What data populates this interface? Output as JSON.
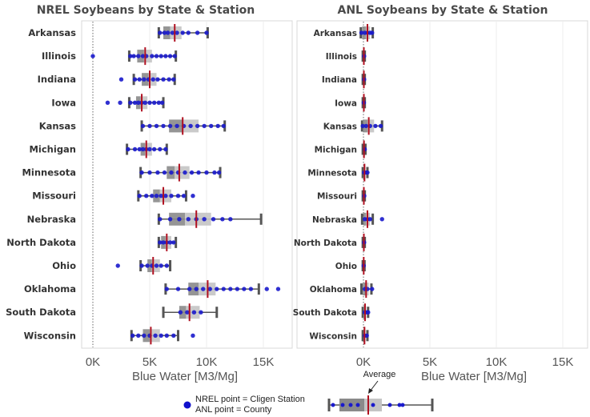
{
  "chart_data": [
    {
      "type": "boxplot",
      "title": "NREL Soybeans by State & Station",
      "xlabel": "Blue Water [M3/Mg]",
      "xlim": [
        -800,
        17000
      ],
      "xticks": [
        0,
        5000,
        10000,
        15000
      ],
      "xtick_labels": [
        "0K",
        "5K",
        "10K",
        "15K"
      ],
      "reference_line_x": 0,
      "categories": [
        "Arkansas",
        "Illinois",
        "Indiana",
        "Iowa",
        "Kansas",
        "Michigan",
        "Minnesota",
        "Missouri",
        "Nebraska",
        "North Dakota",
        "Ohio",
        "Oklahoma",
        "South Dakota",
        "Wisconsin"
      ],
      "boxes": [
        {
          "state": "Arkansas",
          "min": 5800,
          "q1": 6200,
          "median": 6800,
          "q3": 7800,
          "max": 10100,
          "avg": 7200
        },
        {
          "state": "Illinois",
          "min": 3200,
          "q1": 3900,
          "median": 4500,
          "q3": 5200,
          "max": 7300,
          "avg": 4600
        },
        {
          "state": "Indiana",
          "min": 3600,
          "q1": 4300,
          "median": 4900,
          "q3": 5600,
          "max": 7200,
          "avg": 5000
        },
        {
          "state": "Iowa",
          "min": 3200,
          "q1": 3800,
          "median": 4200,
          "q3": 4800,
          "max": 6200,
          "avg": 4300
        },
        {
          "state": "Kansas",
          "min": 4300,
          "q1": 6700,
          "median": 7900,
          "q3": 9300,
          "max": 11600,
          "avg": 7900
        },
        {
          "state": "Michigan",
          "min": 3000,
          "q1": 4200,
          "median": 4600,
          "q3": 5200,
          "max": 6500,
          "avg": 4700
        },
        {
          "state": "Minnesota",
          "min": 4200,
          "q1": 6500,
          "median": 7200,
          "q3": 8500,
          "max": 11200,
          "avg": 7600
        },
        {
          "state": "Missouri",
          "min": 4000,
          "q1": 5300,
          "median": 5900,
          "q3": 6900,
          "max": 8200,
          "avg": 6200
        },
        {
          "state": "Nebraska",
          "min": 5800,
          "q1": 6700,
          "median": 8100,
          "q3": 10400,
          "max": 14800,
          "avg": 9100
        },
        {
          "state": "North Dakota",
          "min": 5800,
          "q1": 6000,
          "median": 6400,
          "q3": 6900,
          "max": 7300,
          "avg": 6500
        },
        {
          "state": "Ohio",
          "min": 4200,
          "q1": 4800,
          "median": 5200,
          "q3": 5900,
          "max": 6800,
          "avg": 5300
        },
        {
          "state": "Oklahoma",
          "min": 6400,
          "q1": 8400,
          "median": 9300,
          "q3": 10800,
          "max": 14600,
          "avg": 10100
        },
        {
          "state": "South Dakota",
          "min": 6200,
          "q1": 7600,
          "median": 8200,
          "q3": 9400,
          "max": 10900,
          "avg": 8500
        },
        {
          "state": "Wisconsin",
          "min": 3400,
          "q1": 4400,
          "median": 5000,
          "q3": 5900,
          "max": 7500,
          "avg": 5100
        }
      ],
      "points": [
        {
          "state": "Arkansas",
          "values": [
            5900,
            6300,
            6600,
            7000,
            7400,
            7900,
            8400,
            9200,
            10000
          ]
        },
        {
          "state": "Illinois",
          "values": [
            0,
            3300,
            3600,
            4000,
            4400,
            4700,
            5200,
            5600,
            6000,
            6400,
            6800,
            7200
          ]
        },
        {
          "state": "Indiana",
          "values": [
            2500,
            3700,
            4100,
            4500,
            4900,
            5300,
            5700,
            6200,
            6700,
            7100
          ]
        },
        {
          "state": "Iowa",
          "values": [
            1300,
            2400,
            3300,
            3700,
            4000,
            4300,
            4600,
            5000,
            5400,
            5800,
            6100
          ]
        },
        {
          "state": "Kansas",
          "values": [
            4400,
            5000,
            5600,
            6200,
            6800,
            7400,
            8000,
            8600,
            9200,
            9800,
            10400,
            11000,
            11500
          ]
        },
        {
          "state": "Michigan",
          "values": [
            3100,
            3700,
            4100,
            4400,
            4700,
            5000,
            5400,
            5900,
            6400
          ]
        },
        {
          "state": "Minnesota",
          "values": [
            4300,
            5000,
            5700,
            6300,
            6900,
            7500,
            8100,
            8700,
            9300,
            10000,
            10700,
            11100
          ]
        },
        {
          "state": "Missouri",
          "values": [
            4100,
            4700,
            5200,
            5600,
            6000,
            6400,
            6900,
            7500,
            8000,
            8800
          ]
        },
        {
          "state": "Nebraska",
          "values": [
            5900,
            6800,
            7600,
            8400,
            9100,
            9800,
            10600,
            11400,
            12100
          ]
        },
        {
          "state": "North Dakota",
          "values": [
            5900,
            6200,
            6500,
            6800,
            7100
          ]
        },
        {
          "state": "Ohio",
          "values": [
            2200,
            4300,
            4800,
            5200,
            5600,
            6000,
            6500
          ]
        },
        {
          "state": "Oklahoma",
          "values": [
            6500,
            7500,
            8500,
            9100,
            9700,
            10300,
            10900,
            11500,
            12100,
            12700,
            13300,
            13900,
            15300,
            16300
          ]
        },
        {
          "state": "South Dakota",
          "values": [
            7700,
            8300,
            8900,
            9500
          ]
        },
        {
          "state": "Wisconsin",
          "values": [
            3500,
            4000,
            4500,
            5000,
            5500,
            6000,
            6500,
            7100,
            8800
          ]
        }
      ]
    },
    {
      "type": "boxplot",
      "title": "ANL Soybeans by State & Station",
      "xlabel": "Blue Water [M3/Mg]",
      "xlim": [
        -800,
        17000
      ],
      "xticks": [
        0,
        5000,
        10000,
        15000
      ],
      "xtick_labels": [
        "0K",
        "5K",
        "10K",
        "15K"
      ],
      "reference_line_x": 0,
      "categories": [
        "Arkansas",
        "Illinois",
        "Indiana",
        "Iowa",
        "Kansas",
        "Michigan",
        "Minnesota",
        "Missouri",
        "Nebraska",
        "North Dakota",
        "Ohio",
        "Oklahoma",
        "South Dakota",
        "Wisconsin"
      ],
      "boxes": [
        {
          "state": "Arkansas",
          "min": -200,
          "q1": -100,
          "median": 200,
          "q3": 500,
          "max": 700,
          "avg": 300
        },
        {
          "state": "Illinois",
          "min": -50,
          "q1": 0,
          "median": 20,
          "q3": 60,
          "max": 100,
          "avg": 30
        },
        {
          "state": "Indiana",
          "min": -50,
          "q1": 0,
          "median": 20,
          "q3": 60,
          "max": 100,
          "avg": 30
        },
        {
          "state": "Iowa",
          "min": -50,
          "q1": 0,
          "median": 20,
          "q3": 60,
          "max": 100,
          "avg": 30
        },
        {
          "state": "Kansas",
          "min": -100,
          "q1": -50,
          "median": 300,
          "q3": 800,
          "max": 1400,
          "avg": 400
        },
        {
          "state": "Michigan",
          "min": -50,
          "q1": 0,
          "median": 20,
          "q3": 80,
          "max": 150,
          "avg": 40
        },
        {
          "state": "Minnesota",
          "min": -50,
          "q1": 0,
          "median": 50,
          "q3": 150,
          "max": 300,
          "avg": 80
        },
        {
          "state": "Missouri",
          "min": -50,
          "q1": 0,
          "median": 20,
          "q3": 60,
          "max": 100,
          "avg": 30
        },
        {
          "state": "Nebraska",
          "min": -100,
          "q1": 0,
          "median": 200,
          "q3": 500,
          "max": 700,
          "avg": 300
        },
        {
          "state": "North Dakota",
          "min": -50,
          "q1": 0,
          "median": 20,
          "q3": 60,
          "max": 100,
          "avg": 30
        },
        {
          "state": "Ohio",
          "min": -50,
          "q1": 0,
          "median": 10,
          "q3": 40,
          "max": 80,
          "avg": 20
        },
        {
          "state": "Oklahoma",
          "min": -150,
          "q1": -50,
          "median": 150,
          "q3": 400,
          "max": 600,
          "avg": 200
        },
        {
          "state": "South Dakota",
          "min": -50,
          "q1": 0,
          "median": 80,
          "q3": 200,
          "max": 350,
          "avg": 120
        },
        {
          "state": "Wisconsin",
          "min": -50,
          "q1": 0,
          "median": 50,
          "q3": 150,
          "max": 300,
          "avg": 80
        }
      ],
      "points": [
        {
          "state": "Arkansas",
          "values": [
            -150,
            100,
            300,
            500,
            650
          ]
        },
        {
          "state": "Illinois",
          "values": [
            50
          ]
        },
        {
          "state": "Indiana",
          "values": [
            50
          ]
        },
        {
          "state": "Iowa",
          "values": [
            30
          ]
        },
        {
          "state": "Kansas",
          "values": [
            -50,
            200,
            500,
            900,
            1300
          ]
        },
        {
          "state": "Michigan",
          "values": [
            100
          ]
        },
        {
          "state": "Minnesota",
          "values": [
            50,
            200,
            300
          ]
        },
        {
          "state": "Missouri",
          "values": [
            60
          ]
        },
        {
          "state": "Nebraska",
          "values": [
            100,
            300,
            500,
            1400
          ]
        },
        {
          "state": "North Dakota",
          "values": [
            50
          ]
        },
        {
          "state": "Ohio",
          "values": [
            20
          ]
        },
        {
          "state": "Oklahoma",
          "values": [
            100,
            300,
            650
          ]
        },
        {
          "state": "South Dakota",
          "values": [
            100,
            250,
            350
          ]
        },
        {
          "state": "Wisconsin",
          "values": [
            100,
            250
          ]
        }
      ]
    }
  ],
  "legend": {
    "line1": "NREL point = Cligen Station",
    "line2": "ANL point = County",
    "average_label": "Average",
    "marker_color": "#1010cc"
  },
  "colors": {
    "point": "#1a1acc",
    "average_line": "#b01020",
    "box_dark": "#8a8a8a",
    "box_light": "#c4c4c4",
    "whisker": "#555555",
    "panel_border": "#d8d8d8",
    "grid": "#ececec"
  }
}
